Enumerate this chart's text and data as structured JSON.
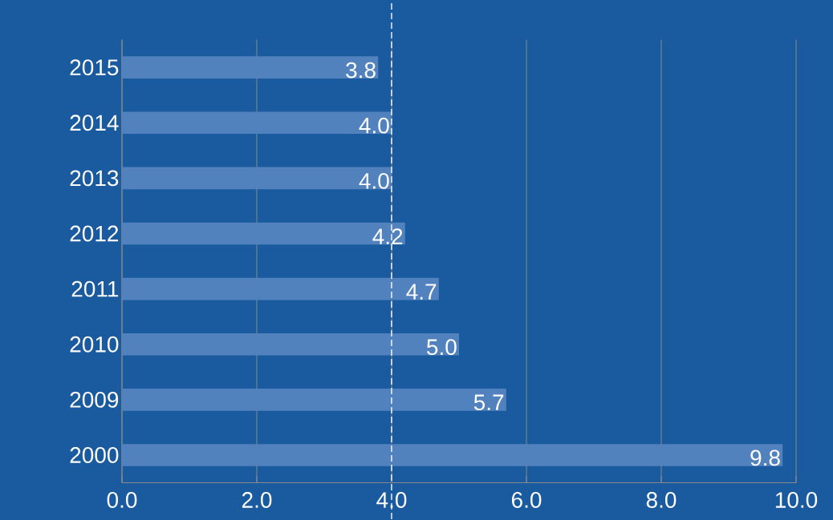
{
  "chart_data": {
    "type": "bar",
    "orientation": "horizontal",
    "categories": [
      "2015",
      "2014",
      "2013",
      "2012",
      "2011",
      "2010",
      "2009",
      "2000"
    ],
    "values": [
      3.8,
      4.0,
      4.0,
      4.2,
      4.7,
      5.0,
      5.7,
      9.8
    ],
    "value_labels": [
      "3.8",
      "4.0",
      "4.0",
      "4.2",
      "4.7",
      "5.0",
      "5.7",
      "9.8"
    ],
    "color": "#5282be",
    "xlim": [
      0,
      10
    ],
    "xticks": [
      {
        "value": 0,
        "label": "0.0"
      },
      {
        "value": 2,
        "label": "2.0"
      },
      {
        "value": 4,
        "label": "4.0"
      },
      {
        "value": 6,
        "label": "6.0"
      },
      {
        "value": 8,
        "label": "8.0"
      },
      {
        "value": 10,
        "label": "10.0"
      }
    ],
    "grid": "x",
    "ref_lines": [
      {
        "axis": "x",
        "value": 4,
        "color": "#ffffff",
        "line_style": "dashed"
      }
    ]
  }
}
